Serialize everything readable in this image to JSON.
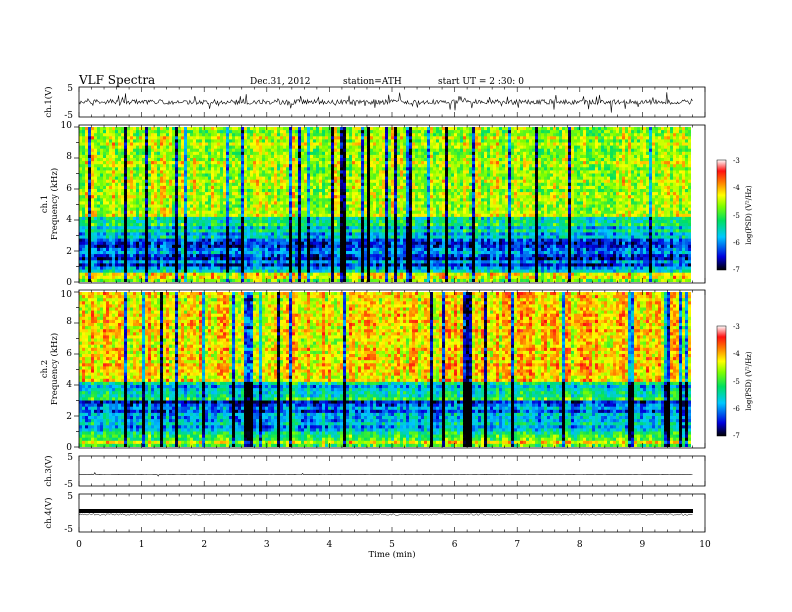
{
  "header": {
    "title": "VLF  Spectra",
    "date": "Dec.31, 2012",
    "station": "station=ATH",
    "start": "start  UT  =   2  :30: 0"
  },
  "chart_data": [
    {
      "type": "line",
      "name": "ch1-waveform",
      "ylabel": "ch.1(V)",
      "ylim": [
        -5,
        5
      ],
      "yticks": [
        "5",
        "-5"
      ],
      "xlim": [
        0,
        10
      ]
    },
    {
      "type": "heatmap",
      "name": "ch1-spectrogram",
      "ylabel_channel": "ch.1",
      "ylabel": "Frequency  (kHz)",
      "ylim": [
        0,
        10
      ],
      "yticks": [
        "0",
        "2",
        "4",
        "6",
        "8",
        "10"
      ],
      "xlim": [
        0,
        9.8
      ],
      "colorbar_label": "log(PSD) (V²/Hz)",
      "colorbar_range": [
        -7,
        -3
      ],
      "colorbar_ticks": [
        "-3",
        "-4",
        "-5",
        "-6",
        "-7"
      ]
    },
    {
      "type": "heatmap",
      "name": "ch2-spectrogram",
      "ylabel_channel": "ch.2",
      "ylabel": "Frequency  (kHz)",
      "ylim": [
        0,
        10
      ],
      "yticks": [
        "0",
        "2",
        "4",
        "6",
        "8",
        "10"
      ],
      "xlim": [
        0,
        9.8
      ],
      "colorbar_label": "log(PSD) (V²/Hz)",
      "colorbar_range": [
        -7,
        -3
      ],
      "colorbar_ticks": [
        "-3",
        "-4",
        "-5",
        "-6",
        "-7"
      ]
    },
    {
      "type": "line",
      "name": "ch3-waveform",
      "ylabel": "ch.3(V)",
      "ylim": [
        -5,
        5
      ],
      "yticks": [
        "5",
        "-5"
      ],
      "xlim": [
        0,
        10
      ]
    },
    {
      "type": "line",
      "name": "ch4-waveform",
      "ylabel": "ch.4(V)",
      "ylim": [
        -5,
        5
      ],
      "yticks": [
        "5",
        "-5"
      ],
      "xlim": [
        0,
        10
      ]
    }
  ],
  "xaxis": {
    "label": "Time  (min)",
    "range": [
      0,
      10
    ],
    "ticks": [
      "0",
      "1",
      "2",
      "3",
      "4",
      "5",
      "6",
      "7",
      "8",
      "9",
      "10"
    ]
  },
  "colors": {
    "spectrum_low": "#000033",
    "spectrum_high": "#ff3333",
    "trace": "#000000"
  }
}
